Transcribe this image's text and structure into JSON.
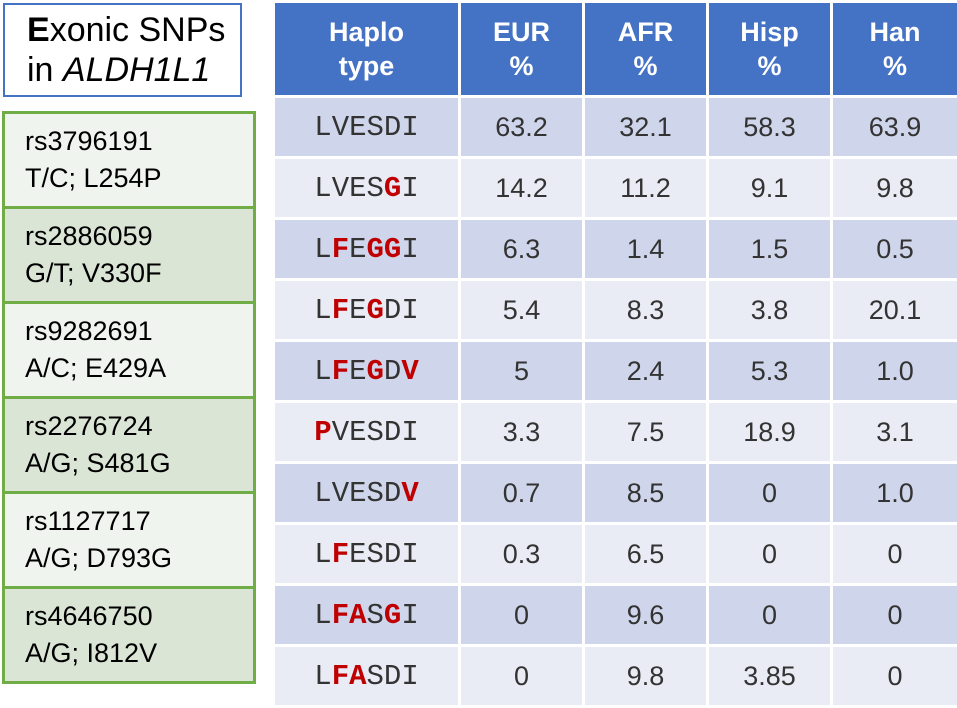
{
  "title": {
    "first_letter": "E",
    "rest_line1": "xonic SNPs",
    "prefix_line2": "in ",
    "gene": "ALDH1L1"
  },
  "snps": [
    {
      "id": "rs3796191",
      "change": "T/C; L254P"
    },
    {
      "id": "rs2886059",
      "change": "G/T; V330F"
    },
    {
      "id": "rs9282691",
      "change": "A/C; E429A"
    },
    {
      "id": "rs2276724",
      "change": "A/G; S481G"
    },
    {
      "id": "rs1127717",
      "change": "A/G; D793G"
    },
    {
      "id": "rs4646750",
      "change": "A/G; I812V"
    }
  ],
  "table": {
    "headers": [
      {
        "line1": "Haplo",
        "line2": "type"
      },
      {
        "line1": "EUR",
        "line2": "%"
      },
      {
        "line1": "AFR",
        "line2": "%"
      },
      {
        "line1": "Hisp",
        "line2": "%"
      },
      {
        "line1": "Han",
        "line2": "%"
      }
    ],
    "rows": [
      {
        "haplotype": "LVESDI",
        "mutated_positions": [],
        "values": [
          "63.2",
          "32.1",
          "58.3",
          "63.9"
        ]
      },
      {
        "haplotype": "LVESGI",
        "mutated_positions": [
          4
        ],
        "values": [
          "14.2",
          "11.2",
          "9.1",
          "9.8"
        ]
      },
      {
        "haplotype": "LFEGGI",
        "mutated_positions": [
          1,
          3,
          4
        ],
        "values": [
          "6.3",
          "1.4",
          "1.5",
          "0.5"
        ]
      },
      {
        "haplotype": "LFEGDI",
        "mutated_positions": [
          1,
          3
        ],
        "values": [
          "5.4",
          "8.3",
          "3.8",
          "20.1"
        ]
      },
      {
        "haplotype": "LFEGDV",
        "mutated_positions": [
          1,
          3,
          5
        ],
        "values": [
          "5",
          "2.4",
          "5.3",
          "1.0"
        ]
      },
      {
        "haplotype": "PVESDI",
        "mutated_positions": [
          0
        ],
        "values": [
          "3.3",
          "7.5",
          "18.9",
          "3.1"
        ]
      },
      {
        "haplotype": "LVESDV",
        "mutated_positions": [
          5
        ],
        "values": [
          "0.7",
          "8.5",
          "0",
          "1.0"
        ]
      },
      {
        "haplotype": "LFESDI",
        "mutated_positions": [
          1
        ],
        "values": [
          "0.3",
          "6.5",
          "0",
          "0"
        ]
      },
      {
        "haplotype": "LFASGI",
        "mutated_positions": [
          1,
          2,
          4
        ],
        "values": [
          "0",
          "9.6",
          "0",
          "0"
        ]
      },
      {
        "haplotype": "LFASDI",
        "mutated_positions": [
          1,
          2
        ],
        "values": [
          "0",
          "9.8",
          "3.85",
          "0"
        ]
      }
    ]
  },
  "colors": {
    "header_blue": "#4472c4",
    "row_dark": "#cfd5ea",
    "row_light": "#e9ebf5",
    "snp_border_green": "#70ad47",
    "snp_light": "#f0f4ef",
    "snp_dark": "#dbe5d6",
    "mutation_red": "#c00000"
  }
}
